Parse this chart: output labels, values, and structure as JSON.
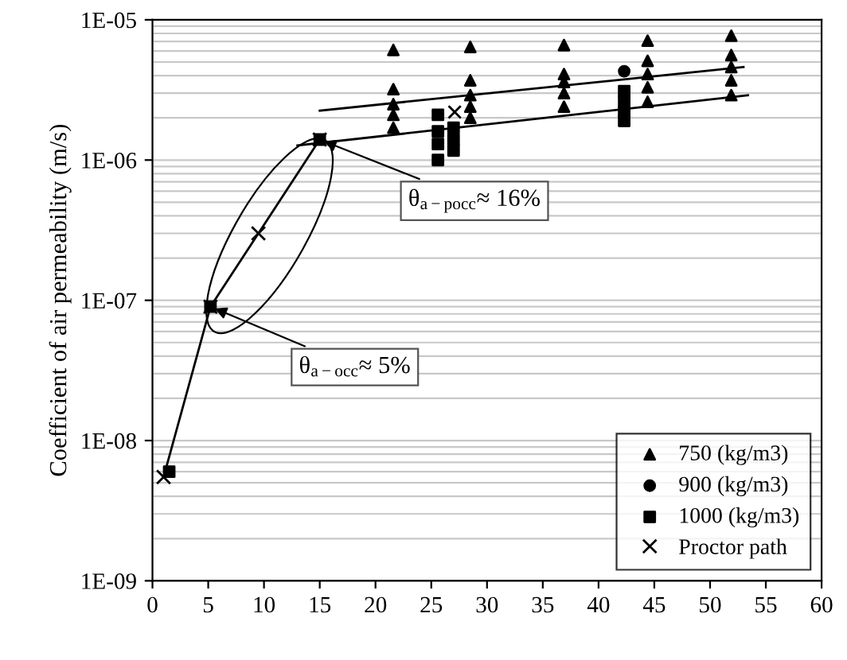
{
  "chart_data": {
    "type": "scatter",
    "ylabel": "Coefficient of air permeability (m/s)",
    "log": "y",
    "xlim": [
      0,
      60
    ],
    "ylim": [
      1e-09,
      1e-05
    ],
    "xticks": [
      0,
      5,
      10,
      15,
      20,
      25,
      30,
      35,
      40,
      45,
      50,
      55,
      60
    ],
    "yticks": [
      {
        "value": 1e-09,
        "label": "1E-09"
      },
      {
        "value": 1e-08,
        "label": "1E-08"
      },
      {
        "value": 1e-07,
        "label": "1E-07"
      },
      {
        "value": 1e-06,
        "label": "1E-06"
      },
      {
        "value": 1e-05,
        "label": "1E-05"
      }
    ],
    "grid": "y",
    "legend": "bottom right",
    "series": [
      {
        "name": "750 (kg/m3)",
        "color": "#000000",
        "marker": "triangle",
        "x": [
          21.6,
          21.6,
          21.6,
          21.6,
          21.6,
          28.5,
          28.5,
          28.5,
          28.5,
          28.5,
          36.9,
          36.9,
          36.9,
          36.9,
          36.9,
          44.4,
          44.4,
          44.4,
          44.4,
          44.4,
          51.9,
          51.9,
          51.9,
          51.9,
          51.9
        ],
        "values": [
          6.1e-06,
          3.2e-06,
          2.5e-06,
          2.1e-06,
          1.7e-06,
          6.4e-06,
          3.7e-06,
          2.9e-06,
          2.4e-06,
          2e-06,
          6.6e-06,
          4.1e-06,
          3.6e-06,
          3e-06,
          2.4e-06,
          7.1e-06,
          5.1e-06,
          4.1e-06,
          3.3e-06,
          2.6e-06,
          7.7e-06,
          5.6e-06,
          4.6e-06,
          3.7e-06,
          2.9e-06
        ]
      },
      {
        "name": "900 (kg/m3)",
        "color": "#000000",
        "marker": "circle",
        "x": [
          42.3
        ],
        "values": [
          4.3e-06
        ]
      },
      {
        "name": "1000 (kg/m3)",
        "color": "#000000",
        "marker": "square",
        "x": [
          1.5,
          5.2,
          15,
          25.6,
          25.6,
          25.6,
          25.6,
          27,
          27,
          27,
          42.3,
          42.3,
          42.3,
          42.3
        ],
        "values": [
          6e-09,
          9e-08,
          1.4e-06,
          2.1e-06,
          1.6e-06,
          1.3e-06,
          1e-06,
          1.7e-06,
          1.4e-06,
          1.17e-06,
          3.1e-06,
          2.6e-06,
          2.2e-06,
          1.9e-06
        ]
      },
      {
        "name": "Proctor path",
        "color": "#000000",
        "marker": "cross",
        "type": "line",
        "x": [
          1,
          5.2,
          9.5,
          15
        ],
        "values": [
          5.5e-09,
          9e-08,
          3e-07,
          1.4e-06
        ]
      },
      {
        "type": "line",
        "color": "#000000",
        "marker": "none",
        "x": [
          15,
          53
        ],
        "values": [
          2.25e-06,
          4.6e-06
        ]
      },
      {
        "type": "line",
        "color": "#000000",
        "marker": "none",
        "x": [
          13,
          53.4
        ],
        "values": [
          1.27e-06,
          2.9e-06
        ]
      },
      {
        "color": "#000000",
        "marker": "cross",
        "x": [
          27.1
        ],
        "values": [
          2.2e-06
        ]
      }
    ],
    "annotations": [
      {
        "text": "θ$_{a−pocc}$≈ 16%",
        "x": 15,
        "y": 1.4e-06
      },
      {
        "text": "θ$_{a−occ}$≈ 5%",
        "x": 5.2,
        "y": 9e-08
      }
    ]
  }
}
